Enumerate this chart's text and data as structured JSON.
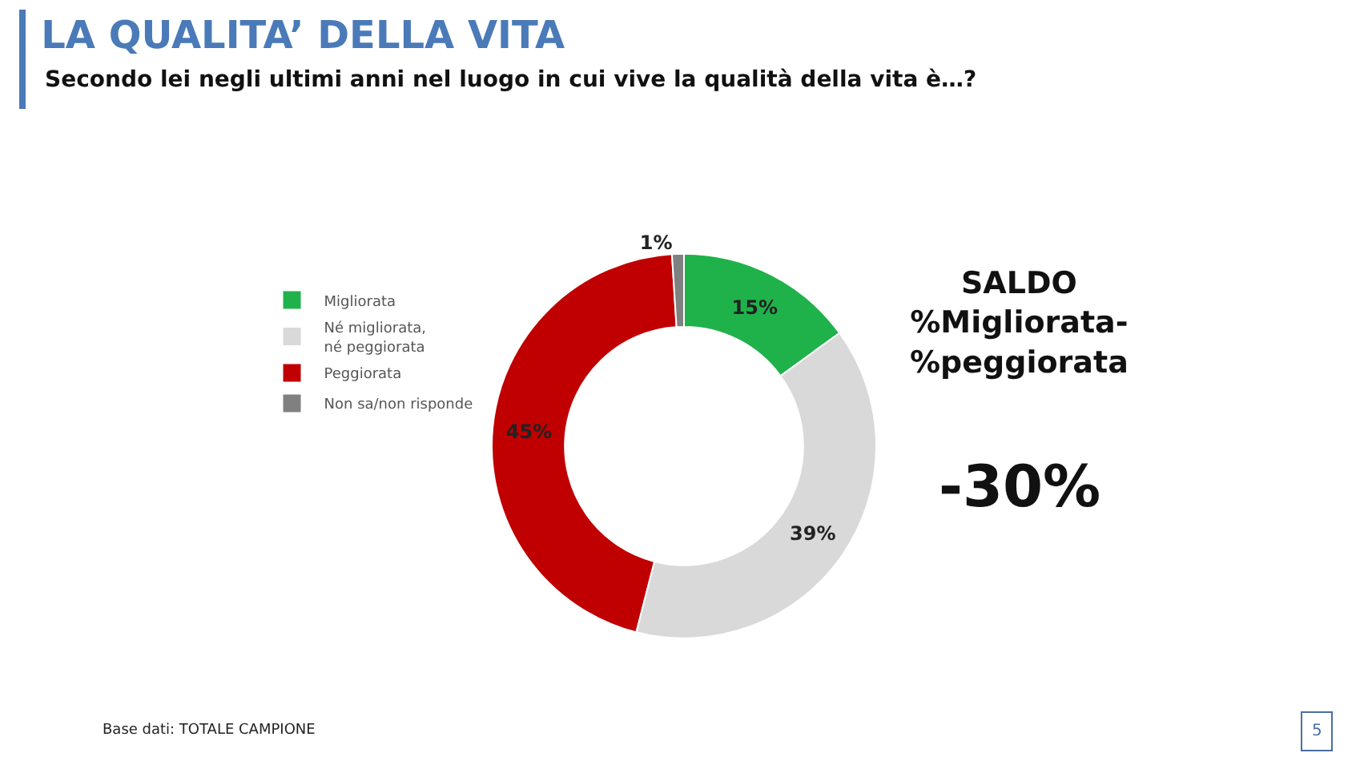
{
  "chart_data": {
    "type": "donut",
    "title": "LA QUALITA’ DELLA VITA",
    "subtitle": "Secondo lei negli ultimi anni nel luogo in cui vive la qualità della vita è…?",
    "categories": [
      "Migliorata",
      "Né migliorata, né peggiorata",
      "Peggiorata",
      "Non sa/non risponde"
    ],
    "values": [
      15,
      39,
      45,
      1
    ],
    "value_labels": [
      "15%",
      "39%",
      "45%",
      "1%"
    ],
    "colors": [
      "#1fb24a",
      "#d9d9d9",
      "#c00000",
      "#808080"
    ],
    "legend": "left",
    "annotations": [
      "SALDO\n%Migliorata-\n%peggiorata",
      "-30%",
      "Base dati: TOTALE CAMPIONE",
      "5"
    ]
  }
}
